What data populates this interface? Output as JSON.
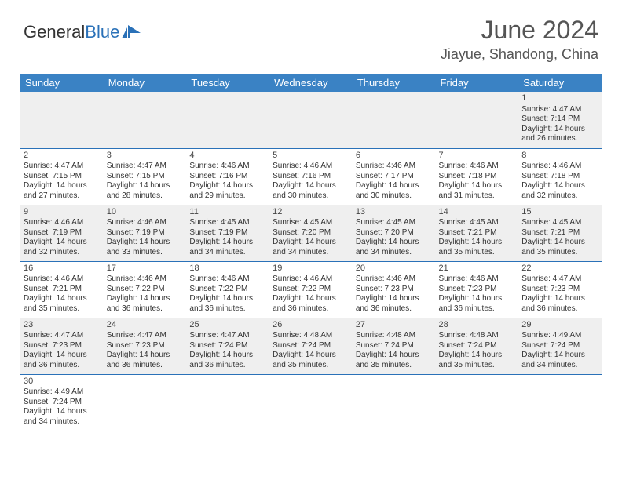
{
  "brand": {
    "part1": "General",
    "part2": "Blue"
  },
  "title": "June 2024",
  "location": "Jiayue, Shandong, China",
  "colors": {
    "header_bg": "#3a82c4",
    "header_text": "#ffffff",
    "row_border": "#2a71b8",
    "even_row_bg": "#efefef",
    "odd_row_bg": "#ffffff",
    "brand_blue": "#2a71b8",
    "text": "#333333"
  },
  "typography": {
    "title_fontsize": 32,
    "location_fontsize": 18,
    "header_fontsize": 13,
    "cell_fontsize": 10
  },
  "dayHeaders": [
    "Sunday",
    "Monday",
    "Tuesday",
    "Wednesday",
    "Thursday",
    "Friday",
    "Saturday"
  ],
  "weeks": [
    [
      null,
      null,
      null,
      null,
      null,
      null,
      {
        "n": "1",
        "sr": "Sunrise: 4:47 AM",
        "ss": "Sunset: 7:14 PM",
        "d1": "Daylight: 14 hours",
        "d2": "and 26 minutes."
      }
    ],
    [
      {
        "n": "2",
        "sr": "Sunrise: 4:47 AM",
        "ss": "Sunset: 7:15 PM",
        "d1": "Daylight: 14 hours",
        "d2": "and 27 minutes."
      },
      {
        "n": "3",
        "sr": "Sunrise: 4:47 AM",
        "ss": "Sunset: 7:15 PM",
        "d1": "Daylight: 14 hours",
        "d2": "and 28 minutes."
      },
      {
        "n": "4",
        "sr": "Sunrise: 4:46 AM",
        "ss": "Sunset: 7:16 PM",
        "d1": "Daylight: 14 hours",
        "d2": "and 29 minutes."
      },
      {
        "n": "5",
        "sr": "Sunrise: 4:46 AM",
        "ss": "Sunset: 7:16 PM",
        "d1": "Daylight: 14 hours",
        "d2": "and 30 minutes."
      },
      {
        "n": "6",
        "sr": "Sunrise: 4:46 AM",
        "ss": "Sunset: 7:17 PM",
        "d1": "Daylight: 14 hours",
        "d2": "and 30 minutes."
      },
      {
        "n": "7",
        "sr": "Sunrise: 4:46 AM",
        "ss": "Sunset: 7:18 PM",
        "d1": "Daylight: 14 hours",
        "d2": "and 31 minutes."
      },
      {
        "n": "8",
        "sr": "Sunrise: 4:46 AM",
        "ss": "Sunset: 7:18 PM",
        "d1": "Daylight: 14 hours",
        "d2": "and 32 minutes."
      }
    ],
    [
      {
        "n": "9",
        "sr": "Sunrise: 4:46 AM",
        "ss": "Sunset: 7:19 PM",
        "d1": "Daylight: 14 hours",
        "d2": "and 32 minutes."
      },
      {
        "n": "10",
        "sr": "Sunrise: 4:46 AM",
        "ss": "Sunset: 7:19 PM",
        "d1": "Daylight: 14 hours",
        "d2": "and 33 minutes."
      },
      {
        "n": "11",
        "sr": "Sunrise: 4:45 AM",
        "ss": "Sunset: 7:19 PM",
        "d1": "Daylight: 14 hours",
        "d2": "and 34 minutes."
      },
      {
        "n": "12",
        "sr": "Sunrise: 4:45 AM",
        "ss": "Sunset: 7:20 PM",
        "d1": "Daylight: 14 hours",
        "d2": "and 34 minutes."
      },
      {
        "n": "13",
        "sr": "Sunrise: 4:45 AM",
        "ss": "Sunset: 7:20 PM",
        "d1": "Daylight: 14 hours",
        "d2": "and 34 minutes."
      },
      {
        "n": "14",
        "sr": "Sunrise: 4:45 AM",
        "ss": "Sunset: 7:21 PM",
        "d1": "Daylight: 14 hours",
        "d2": "and 35 minutes."
      },
      {
        "n": "15",
        "sr": "Sunrise: 4:45 AM",
        "ss": "Sunset: 7:21 PM",
        "d1": "Daylight: 14 hours",
        "d2": "and 35 minutes."
      }
    ],
    [
      {
        "n": "16",
        "sr": "Sunrise: 4:46 AM",
        "ss": "Sunset: 7:21 PM",
        "d1": "Daylight: 14 hours",
        "d2": "and 35 minutes."
      },
      {
        "n": "17",
        "sr": "Sunrise: 4:46 AM",
        "ss": "Sunset: 7:22 PM",
        "d1": "Daylight: 14 hours",
        "d2": "and 36 minutes."
      },
      {
        "n": "18",
        "sr": "Sunrise: 4:46 AM",
        "ss": "Sunset: 7:22 PM",
        "d1": "Daylight: 14 hours",
        "d2": "and 36 minutes."
      },
      {
        "n": "19",
        "sr": "Sunrise: 4:46 AM",
        "ss": "Sunset: 7:22 PM",
        "d1": "Daylight: 14 hours",
        "d2": "and 36 minutes."
      },
      {
        "n": "20",
        "sr": "Sunrise: 4:46 AM",
        "ss": "Sunset: 7:23 PM",
        "d1": "Daylight: 14 hours",
        "d2": "and 36 minutes."
      },
      {
        "n": "21",
        "sr": "Sunrise: 4:46 AM",
        "ss": "Sunset: 7:23 PM",
        "d1": "Daylight: 14 hours",
        "d2": "and 36 minutes."
      },
      {
        "n": "22",
        "sr": "Sunrise: 4:47 AM",
        "ss": "Sunset: 7:23 PM",
        "d1": "Daylight: 14 hours",
        "d2": "and 36 minutes."
      }
    ],
    [
      {
        "n": "23",
        "sr": "Sunrise: 4:47 AM",
        "ss": "Sunset: 7:23 PM",
        "d1": "Daylight: 14 hours",
        "d2": "and 36 minutes."
      },
      {
        "n": "24",
        "sr": "Sunrise: 4:47 AM",
        "ss": "Sunset: 7:23 PM",
        "d1": "Daylight: 14 hours",
        "d2": "and 36 minutes."
      },
      {
        "n": "25",
        "sr": "Sunrise: 4:47 AM",
        "ss": "Sunset: 7:24 PM",
        "d1": "Daylight: 14 hours",
        "d2": "and 36 minutes."
      },
      {
        "n": "26",
        "sr": "Sunrise: 4:48 AM",
        "ss": "Sunset: 7:24 PM",
        "d1": "Daylight: 14 hours",
        "d2": "and 35 minutes."
      },
      {
        "n": "27",
        "sr": "Sunrise: 4:48 AM",
        "ss": "Sunset: 7:24 PM",
        "d1": "Daylight: 14 hours",
        "d2": "and 35 minutes."
      },
      {
        "n": "28",
        "sr": "Sunrise: 4:48 AM",
        "ss": "Sunset: 7:24 PM",
        "d1": "Daylight: 14 hours",
        "d2": "and 35 minutes."
      },
      {
        "n": "29",
        "sr": "Sunrise: 4:49 AM",
        "ss": "Sunset: 7:24 PM",
        "d1": "Daylight: 14 hours",
        "d2": "and 34 minutes."
      }
    ],
    [
      {
        "n": "30",
        "sr": "Sunrise: 4:49 AM",
        "ss": "Sunset: 7:24 PM",
        "d1": "Daylight: 14 hours",
        "d2": "and 34 minutes."
      },
      null,
      null,
      null,
      null,
      null,
      null
    ]
  ]
}
